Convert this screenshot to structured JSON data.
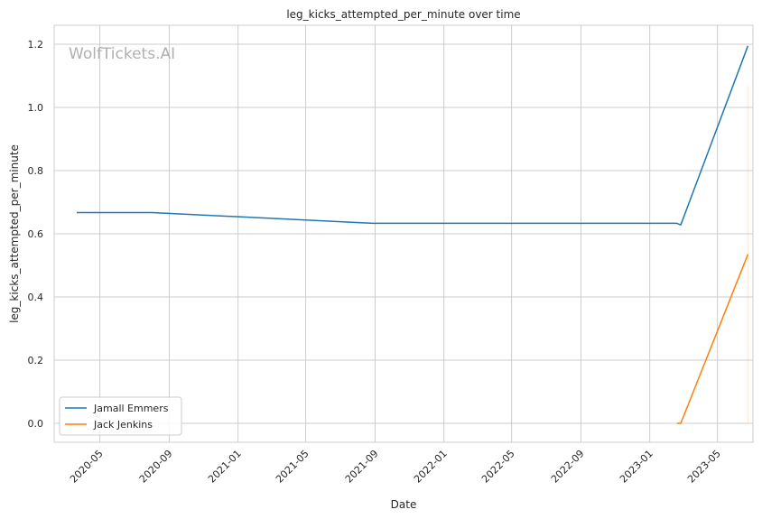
{
  "chart_data": {
    "type": "line",
    "title": "leg_kicks_attempted_per_minute over time",
    "xlabel": "Date",
    "ylabel": "leg_kicks_attempted_per_minute",
    "watermark": "WolfTickets.AI",
    "xlim": [
      "2020-02-10",
      "2023-07-03"
    ],
    "ylim": [
      -0.06,
      1.26
    ],
    "x_ticks": [
      "2020-05-01",
      "2020-09-01",
      "2021-01-01",
      "2021-05-01",
      "2021-09-01",
      "2022-01-01",
      "2022-05-01",
      "2022-09-01",
      "2023-01-01",
      "2023-05-01"
    ],
    "x_tick_labels": [
      "2020-05",
      "2020-09",
      "2021-01",
      "2021-05",
      "2021-09",
      "2022-01",
      "2022-05",
      "2022-09",
      "2023-01",
      "2023-05"
    ],
    "y_ticks": [
      0.0,
      0.2,
      0.4,
      0.6,
      0.8,
      1.0,
      1.2
    ],
    "y_tick_labels": [
      "0.0",
      "0.2",
      "0.4",
      "0.6",
      "0.8",
      "1.0",
      "1.2"
    ],
    "grid": true,
    "legend_position": "lower-left",
    "series": [
      {
        "name": "Jamall Emmers",
        "color": "#1f77b4",
        "points": [
          {
            "x": "2020-03-21",
            "y": 0.667
          },
          {
            "x": "2020-08-01",
            "y": 0.667
          },
          {
            "x": "2021-08-28",
            "y": 0.633
          },
          {
            "x": "2023-02-18",
            "y": 0.633
          },
          {
            "x": "2023-02-25",
            "y": 0.628
          },
          {
            "x": "2023-06-24",
            "y": 1.195
          }
        ]
      },
      {
        "name": "Jack Jenkins",
        "color": "#ff7f0e",
        "points": [
          {
            "x": "2023-02-18",
            "y": 0.0
          },
          {
            "x": "2023-02-25",
            "y": 0.0
          },
          {
            "x": "2023-06-24",
            "y": 0.535
          }
        ]
      }
    ],
    "faint_marks": [
      {
        "x": "2023-06-24",
        "y_from": 0.0,
        "y_to": 1.07,
        "color": "#ff7f0e"
      }
    ]
  }
}
